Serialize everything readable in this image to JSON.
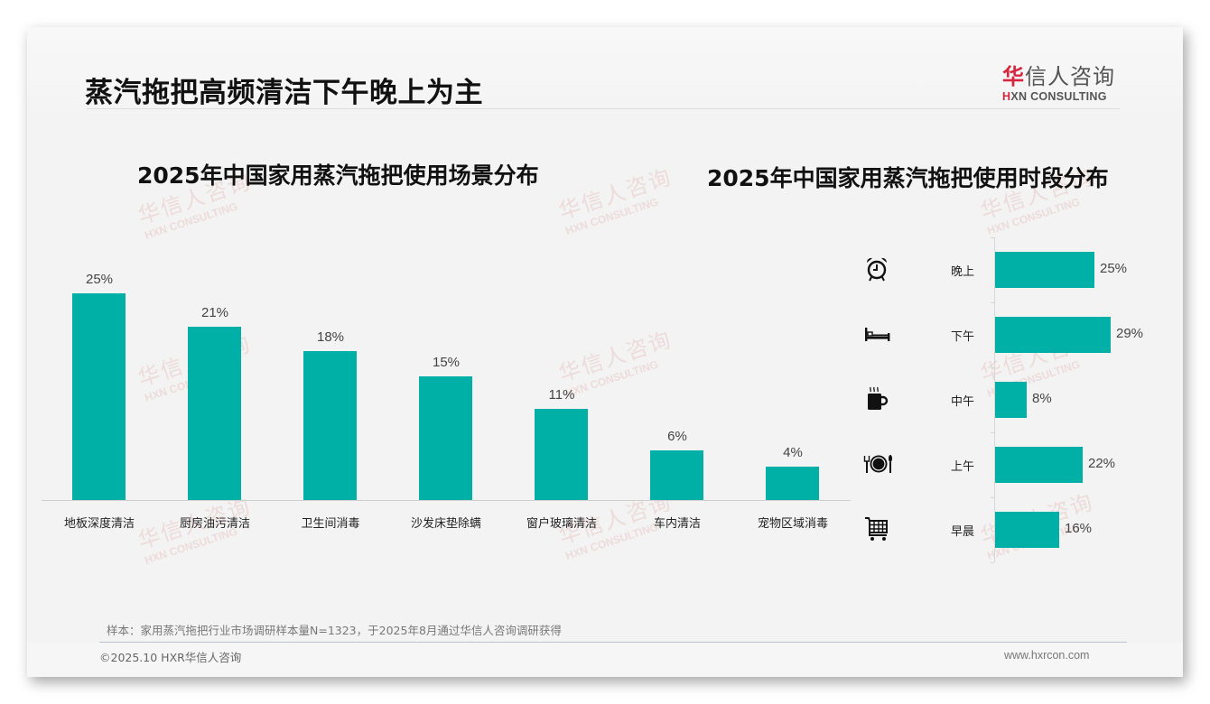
{
  "header": {
    "title": "蒸汽拖把高频清洁下午晚上为主",
    "logo": {
      "cn_first": "华",
      "cn_rest": "信人咨询",
      "en_first": "H",
      "en_rest": "XN CONSULTING"
    }
  },
  "watermark": {
    "cn": "华信人咨询",
    "en": "HXN CONSULTING"
  },
  "colors": {
    "bar": "#00b0a6",
    "accent_red": "#d7263d",
    "background": "#f3f3f3"
  },
  "chart_data": [
    {
      "type": "bar",
      "title": "2025年中国家用蒸汽拖把使用场景分布",
      "categories": [
        "地板深度清洁",
        "厨房油污清洁",
        "卫生间消毒",
        "沙发床垫除螨",
        "窗户玻璃清洁",
        "车内清洁",
        "宠物区域消毒"
      ],
      "values": [
        25,
        21,
        18,
        15,
        11,
        6,
        4
      ],
      "labels": [
        "25%",
        "21%",
        "18%",
        "15%",
        "11%",
        "6%",
        "4%"
      ],
      "xlabel": "",
      "ylabel": "",
      "ylim": [
        0,
        30
      ],
      "grid": false,
      "legend": null,
      "unit": "%"
    },
    {
      "type": "bar",
      "orientation": "horizontal",
      "title": "2025年中国家用蒸汽拖把使用时段分布",
      "categories": [
        "晚上",
        "下午",
        "中午",
        "上午",
        "早晨"
      ],
      "values": [
        25,
        29,
        8,
        22,
        16
      ],
      "labels": [
        "25%",
        "29%",
        "8%",
        "22%",
        "16%"
      ],
      "icons": [
        "alarm-clock-icon",
        "bed-icon",
        "coffee-cup-icon",
        "plate-cutlery-icon",
        "shopping-cart-icon"
      ],
      "xlabel": "",
      "ylabel": "",
      "xlim": [
        0,
        30
      ],
      "grid": false,
      "legend": null,
      "unit": "%"
    }
  ],
  "footer": {
    "source_note": "样本：家用蒸汽拖把行业市场调研样本量N=1323，于2025年8月通过华信人咨询调研获得",
    "copyright": "©2025.10 HXR华信人咨询",
    "website": "www.hxrcon.com"
  }
}
